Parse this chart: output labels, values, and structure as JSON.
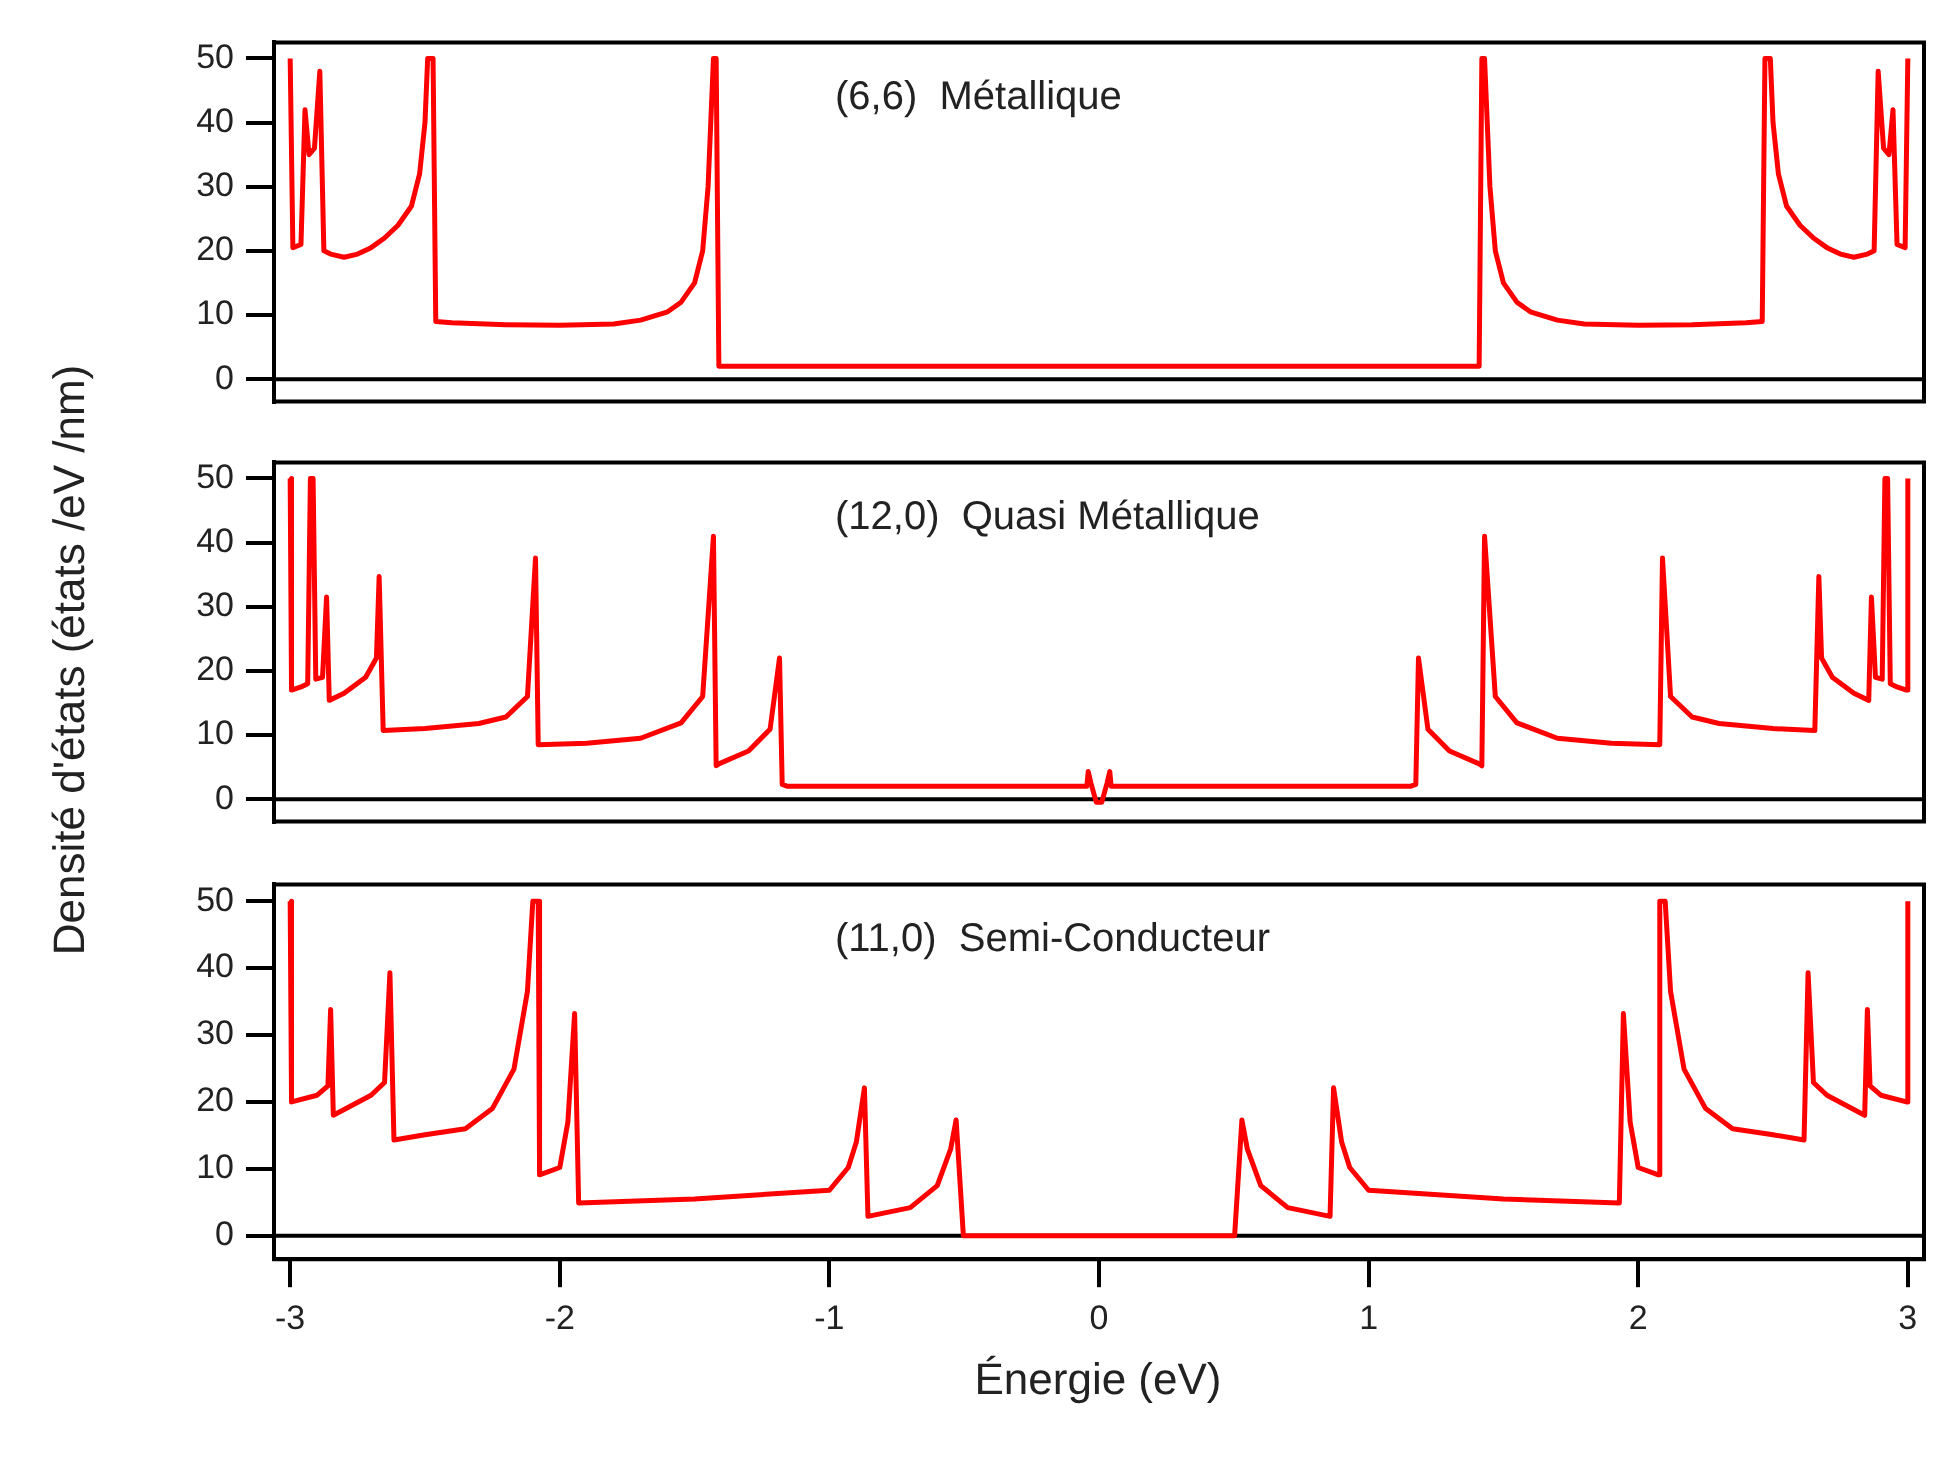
{
  "chart_data": [
    {
      "type": "line",
      "annotations": [
        "(6,6)  Métallique"
      ],
      "xlim": [
        -3.06,
        3.06
      ],
      "xticks": [
        -3,
        -2,
        -1,
        0,
        1,
        2,
        3
      ],
      "ylim": [
        -3.5,
        52.5
      ],
      "yticks": [
        0,
        10,
        20,
        30,
        40,
        50
      ],
      "tick_labels": "y",
      "grid": false,
      "legend": false,
      "ref_lines": [
        {
          "axis": "y",
          "value": 0,
          "color": "#000000"
        }
      ],
      "series": [
        {
          "color": "#ff0000",
          "x": [
            -3.0,
            -2.99,
            -2.96,
            -2.945,
            -2.93,
            -2.91,
            -2.89,
            -2.875,
            -2.85,
            -2.8,
            -2.75,
            -2.7,
            -2.65,
            -2.6,
            -2.55,
            -2.52,
            -2.5,
            -2.49,
            -2.47,
            -2.46,
            -2.4,
            -2.2,
            -2.0,
            -1.8,
            -1.7,
            -1.6,
            -1.55,
            -1.5,
            -1.47,
            -1.45,
            -1.43,
            -1.42,
            -1.41,
            1.41,
            1.42,
            1.43,
            1.45,
            1.47,
            1.5,
            1.55,
            1.6,
            1.7,
            1.8,
            2.0,
            2.2,
            2.4,
            2.46,
            2.47,
            2.49,
            2.5,
            2.52,
            2.55,
            2.6,
            2.65,
            2.7,
            2.75,
            2.8,
            2.85,
            2.875,
            2.89,
            2.91,
            2.93,
            2.945,
            2.96,
            2.99,
            3.0
          ],
          "values": [
            50,
            20.5,
            21,
            42,
            35,
            36,
            48,
            20,
            19.5,
            19,
            19.5,
            20.5,
            22,
            24,
            27,
            32,
            40,
            50,
            50,
            9,
            8.8,
            8.5,
            8.4,
            8.6,
            9.2,
            10.5,
            12,
            15,
            20,
            30,
            50,
            50,
            2,
            2,
            50,
            50,
            30,
            20,
            15,
            12,
            10.5,
            9.2,
            8.6,
            8.4,
            8.5,
            8.8,
            9,
            50,
            50,
            40,
            32,
            27,
            24,
            22,
            20.5,
            19.5,
            19,
            19.5,
            20,
            48,
            36,
            35,
            42,
            21,
            20.5,
            50
          ]
        }
      ]
    },
    {
      "type": "line",
      "ylabel": "Densité d'états (états /eV /nm)",
      "annotations": [
        "(12,0)  Quasi Métallique"
      ],
      "xlim": [
        -3.06,
        3.06
      ],
      "xticks": [
        -3,
        -2,
        -1,
        0,
        1,
        2,
        3
      ],
      "ylim": [
        -3.5,
        52.5
      ],
      "yticks": [
        0,
        10,
        20,
        30,
        40,
        50
      ],
      "tick_labels": "y",
      "grid": false,
      "legend": false,
      "ref_lines": [
        {
          "axis": "y",
          "value": 0,
          "color": "#000000"
        }
      ],
      "series": [
        {
          "color": "#ff0000",
          "x": [
            -3.0,
            -2.995,
            -2.96,
            -2.935,
            -2.925,
            -2.915,
            -2.905,
            -2.88,
            -2.865,
            -2.855,
            -2.8,
            -2.72,
            -2.68,
            -2.67,
            -2.655,
            -2.5,
            -2.3,
            -2.2,
            -2.12,
            -2.09,
            -2.08,
            -1.9,
            -1.7,
            -1.55,
            -1.47,
            -1.43,
            -1.42,
            -1.41,
            -1.3,
            -1.22,
            -1.185,
            -1.175,
            -1.155,
            -0.5,
            -0.045,
            -0.04,
            -0.03,
            -0.01,
            0.01,
            0.03,
            0.04,
            0.045,
            0.5,
            1.155,
            1.175,
            1.185,
            1.22,
            1.3,
            1.41,
            1.42,
            1.43,
            1.47,
            1.55,
            1.7,
            1.9,
            2.08,
            2.09,
            2.12,
            2.2,
            2.3,
            2.5,
            2.655,
            2.67,
            2.68,
            2.72,
            2.8,
            2.855,
            2.865,
            2.88,
            2.905,
            2.915,
            2.925,
            2.935,
            2.96,
            2.995,
            3.0
          ],
          "values": [
            50,
            17,
            17.5,
            18,
            50,
            50,
            18.7,
            19,
            31.5,
            15.4,
            16.5,
            19,
            22,
            34.7,
            10.7,
            11,
            11.8,
            12.8,
            16,
            37.6,
            8.5,
            8.7,
            9.5,
            11.9,
            16,
            41,
            5.2,
            5.5,
            7.5,
            10.9,
            22,
            2.3,
            2,
            2,
            2,
            4.3,
            2.5,
            -0.5,
            -0.5,
            2.5,
            4.3,
            2,
            2,
            2,
            2.3,
            22,
            10.9,
            7.5,
            5.5,
            5.2,
            41,
            16,
            11.9,
            9.5,
            8.7,
            8.5,
            37.6,
            16,
            12.8,
            11.8,
            11,
            10.7,
            34.7,
            22,
            19,
            16.5,
            15.4,
            31.5,
            19,
            18.7,
            50,
            50,
            18,
            17.5,
            17,
            50
          ]
        }
      ]
    },
    {
      "type": "line",
      "xlabel": "Énergie (eV)",
      "annotations": [
        "(11,0)  Semi-Conducteur"
      ],
      "xlim": [
        -3.06,
        3.06
      ],
      "xticks": [
        -3,
        -2,
        -1,
        0,
        1,
        2,
        3
      ],
      "ylim": [
        -3.5,
        52.5
      ],
      "yticks": [
        0,
        10,
        20,
        30,
        40,
        50
      ],
      "grid": false,
      "legend": false,
      "ref_lines": [
        {
          "axis": "y",
          "value": 0,
          "color": "#000000"
        }
      ],
      "series": [
        {
          "color": "#ff0000",
          "x": [
            -3.0,
            -2.995,
            -2.9,
            -2.86,
            -2.85,
            -2.84,
            -2.7,
            -2.65,
            -2.63,
            -2.615,
            -2.5,
            -2.35,
            -2.25,
            -2.17,
            -2.12,
            -2.1,
            -2.08,
            -2.075,
            -2.0,
            -1.97,
            -1.945,
            -1.93,
            -1.5,
            -1.0,
            -0.93,
            -0.9,
            -0.87,
            -0.857,
            -0.7,
            -0.6,
            -0.55,
            -0.53,
            -0.503,
            0.503,
            0.53,
            0.55,
            0.6,
            0.7,
            0.857,
            0.87,
            0.9,
            0.93,
            1.0,
            1.5,
            1.93,
            1.945,
            1.97,
            2.0,
            2.075,
            2.08,
            2.1,
            2.12,
            2.17,
            2.25,
            2.35,
            2.5,
            2.615,
            2.63,
            2.65,
            2.7,
            2.84,
            2.85,
            2.86,
            2.9,
            2.995,
            3.0
          ],
          "values": [
            50,
            20,
            21,
            22.4,
            33.8,
            18,
            21,
            22.9,
            39.3,
            14.3,
            15.1,
            16,
            19,
            24.9,
            36.5,
            50,
            50,
            9.1,
            10.2,
            17,
            33.2,
            4.9,
            5.5,
            6.8,
            10.2,
            14,
            22.1,
            2.9,
            4.2,
            7.5,
            13,
            17.3,
            0,
            0,
            17.3,
            13,
            7.5,
            4.2,
            2.9,
            22.1,
            14,
            10.2,
            6.8,
            5.5,
            4.9,
            33.2,
            17,
            10.2,
            9.1,
            50,
            50,
            36.5,
            24.9,
            19,
            16,
            15.1,
            14.3,
            39.3,
            22.9,
            21,
            18,
            33.8,
            22.4,
            21,
            20,
            50
          ]
        }
      ]
    }
  ]
}
